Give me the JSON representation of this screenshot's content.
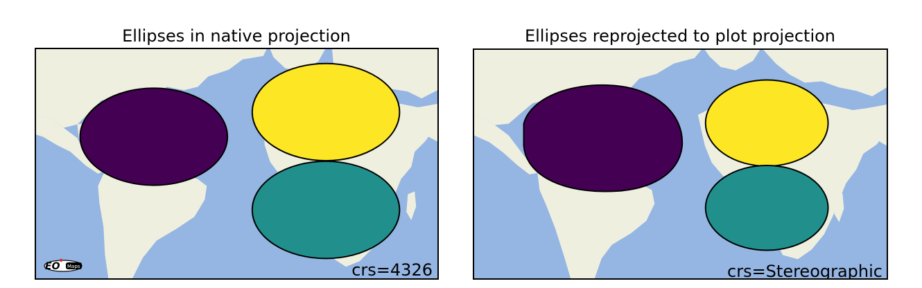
{
  "panels": [
    {
      "title": "Ellipses in native projection",
      "crs_label": "crs=4326",
      "logo_text": "EO Maps",
      "ellipse_colors": [
        "#440154",
        "#fde725",
        "#21908c"
      ]
    },
    {
      "title": "Ellipses reprojected to plot projection",
      "crs_label": "crs=Stereographic",
      "ellipse_colors": [
        "#440154",
        "#fde725",
        "#21908c"
      ]
    }
  ],
  "colors": {
    "ocean": "#95b5e3",
    "land": "#efefdf",
    "outline": "#000000"
  }
}
